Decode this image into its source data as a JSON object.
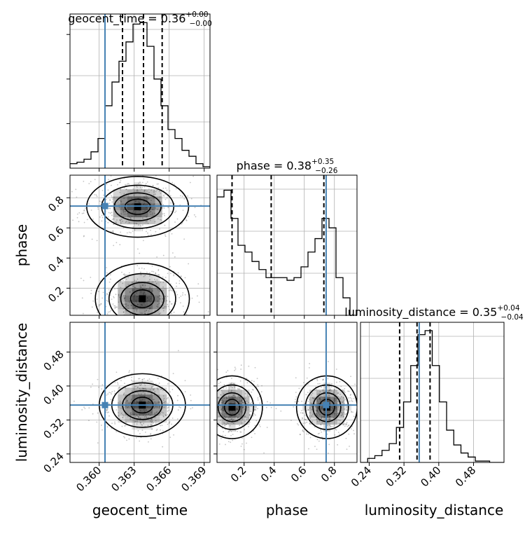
{
  "colors": {
    "truth": "#4682b4",
    "hist": "#000000",
    "grid": "#b0b0b0",
    "scatter": "#555555",
    "density": "#000000"
  },
  "chart_data": {
    "type": "corner",
    "grid": true,
    "parameters": [
      "geocent_time",
      "phase",
      "luminosity_distance"
    ],
    "axis_labels": {
      "geocent_time": "geocent_time",
      "phase": "phase",
      "luminosity_distance": "luminosity_distance"
    },
    "titles": {
      "geocent_time": {
        "name": "geocent_time",
        "value": "0.36",
        "plus": "+0.00",
        "minus": "−0.00"
      },
      "phase": {
        "name": "phase",
        "value": "0.38",
        "plus": "+0.35",
        "minus": "−0.26"
      },
      "luminosity_distance": {
        "name": "luminosity_distance",
        "value": "0.35",
        "plus": "+0.04",
        "minus": "−0.04"
      }
    },
    "ranges": {
      "geocent_time": [
        0.3575,
        0.3695
      ],
      "phase": [
        0.02,
        0.95
      ],
      "luminosity_distance": [
        0.22,
        0.55
      ]
    },
    "ticks": {
      "geocent_time": {
        "values": [
          0.36,
          0.363,
          0.366,
          0.369
        ],
        "labels": [
          "0.360",
          "0.363",
          "0.366",
          "0.369"
        ]
      },
      "phase": {
        "values": [
          0.2,
          0.4,
          0.6,
          0.8
        ],
        "labels": [
          "0.2",
          "0.4",
          "0.6",
          "0.8"
        ]
      },
      "luminosity_distance": {
        "values": [
          0.24,
          0.32,
          0.4,
          0.48
        ],
        "labels": [
          "0.24",
          "0.32",
          "0.40",
          "0.48"
        ]
      }
    },
    "truths": {
      "geocent_time": 0.3605,
      "phase": 0.745,
      "luminosity_distance": 0.355
    },
    "quantiles": {
      "geocent_time": [
        0.362,
        0.3638,
        0.3654
      ],
      "phase": [
        0.12,
        0.38,
        0.73
      ],
      "luminosity_distance": [
        0.31,
        0.35,
        0.38
      ]
    },
    "marginals": {
      "geocent_time": [
        0.03,
        0.04,
        0.06,
        0.11,
        0.2,
        0.42,
        0.58,
        0.72,
        0.85,
        0.97,
        0.98,
        0.82,
        0.6,
        0.42,
        0.26,
        0.2,
        0.12,
        0.08,
        0.03,
        0.01
      ],
      "phase": [
        0.88,
        0.93,
        0.72,
        0.52,
        0.47,
        0.4,
        0.34,
        0.28,
        0.28,
        0.28,
        0.26,
        0.28,
        0.36,
        0.47,
        0.57,
        0.72,
        0.65,
        0.28,
        0.13,
        0.0
      ],
      "luminosity_distance": [
        0.0,
        0.03,
        0.05,
        0.09,
        0.14,
        0.26,
        0.45,
        0.72,
        0.95,
        0.98,
        0.72,
        0.45,
        0.24,
        0.13,
        0.07,
        0.04,
        0.01,
        0.01,
        0.0,
        0.0
      ]
    },
    "joint_modes": {
      "phase_vs_geocent_time": [
        {
          "x": 0.3637,
          "y": 0.13,
          "sx": 0.0012,
          "sy": 0.07
        },
        {
          "x": 0.3633,
          "y": 0.74,
          "sx": 0.0013,
          "sy": 0.06
        }
      ],
      "luminosity_distance_vs_geocent_time": [
        {
          "x": 0.3637,
          "y": 0.355,
          "sx": 0.0011,
          "sy": 0.022
        }
      ],
      "luminosity_distance_vs_phase": [
        {
          "x": 0.12,
          "y": 0.35,
          "sx": 0.06,
          "sy": 0.022
        },
        {
          "x": 0.75,
          "y": 0.35,
          "sx": 0.06,
          "sy": 0.022
        }
      ]
    }
  }
}
